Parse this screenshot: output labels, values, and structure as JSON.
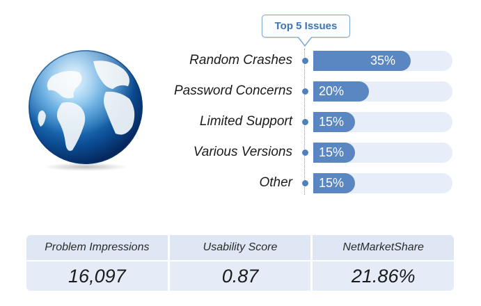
{
  "callout": {
    "label": "Top 5 Issues"
  },
  "chart_data": {
    "type": "bar",
    "title": "Top 5 Issues",
    "categories": [
      "Random Crashes",
      "Password Concerns",
      "Limited Support",
      "Various Versions",
      "Other"
    ],
    "values": [
      35,
      20,
      15,
      15,
      15
    ],
    "value_labels": [
      "35%",
      "20%",
      "15%",
      "15%",
      "15%"
    ],
    "unit": "%",
    "orientation": "horizontal",
    "xlim": [
      0,
      100
    ],
    "grid": false,
    "colors": {
      "fill": "#5a86c2",
      "track": "#e7eef9",
      "dot": "#4f81bd"
    }
  },
  "stats": [
    {
      "label": "Problem Impressions",
      "value": "16,097"
    },
    {
      "label": "Usability Score",
      "value": "0.87"
    },
    {
      "label": "NetMarketShare",
      "value": "21.86%"
    }
  ],
  "globe": {
    "icon": "globe-icon"
  }
}
